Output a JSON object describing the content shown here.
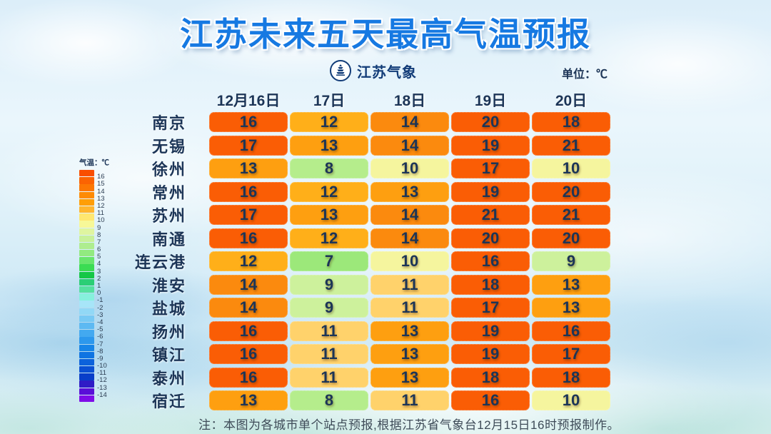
{
  "title": "江苏未来五天最高气温预报",
  "logo": {
    "icon": "pagoda-badge-icon",
    "text": "江苏气象"
  },
  "unit_label": "单位：℃",
  "note": "注：本图为各城市单个站点预报,根据江苏省气象台12月15日16时预报制作。",
  "chart_data": {
    "type": "heatmap",
    "title": "江苏未来五天最高气温预报",
    "unit": "℃",
    "columns": [
      "12月16日",
      "17日",
      "18日",
      "19日",
      "20日"
    ],
    "rows": [
      {
        "city": "南京",
        "values": [
          16,
          12,
          14,
          20,
          18
        ]
      },
      {
        "city": "无锡",
        "values": [
          17,
          13,
          14,
          19,
          21
        ]
      },
      {
        "city": "徐州",
        "values": [
          13,
          8,
          10,
          17,
          10
        ]
      },
      {
        "city": "常州",
        "values": [
          16,
          12,
          13,
          19,
          20
        ]
      },
      {
        "city": "苏州",
        "values": [
          17,
          13,
          14,
          21,
          21
        ]
      },
      {
        "city": "南通",
        "values": [
          16,
          12,
          14,
          20,
          20
        ]
      },
      {
        "city": "连云港",
        "values": [
          12,
          7,
          10,
          16,
          9
        ]
      },
      {
        "city": "淮安",
        "values": [
          14,
          9,
          11,
          18,
          13
        ]
      },
      {
        "city": "盐城",
        "values": [
          14,
          9,
          11,
          17,
          13
        ]
      },
      {
        "city": "扬州",
        "values": [
          16,
          11,
          13,
          19,
          16
        ]
      },
      {
        "city": "镇江",
        "values": [
          16,
          11,
          13,
          19,
          17
        ]
      },
      {
        "city": "泰州",
        "values": [
          16,
          11,
          13,
          18,
          18
        ]
      },
      {
        "city": "宿迁",
        "values": [
          13,
          8,
          11,
          16,
          10
        ]
      }
    ],
    "color_scale": {
      "7": "#9CE87A",
      "8": "#B5ED8C",
      "9": "#CDF19C",
      "10": "#F5F59E",
      "11": "#FFD26B",
      "12": "#FFAF19",
      "13": "#FE9F10",
      "14": "#FB8A0E",
      "15": "#FB7607",
      "16": "#FA5D05"
    }
  },
  "legend": {
    "label": "气温：℃",
    "entries": [
      {
        "label": "",
        "color": "#F94E00"
      },
      {
        "label": "16",
        "color": "#FB6302"
      },
      {
        "label": "15",
        "color": "#FC7703"
      },
      {
        "label": "14",
        "color": "#FE8B05"
      },
      {
        "label": "13",
        "color": "#FF9E07"
      },
      {
        "label": "12",
        "color": "#FFB52F"
      },
      {
        "label": "11",
        "color": "#FFE770"
      },
      {
        "label": "10",
        "color": "#F7F898"
      },
      {
        "label": "9",
        "color": "#DFF5A0"
      },
      {
        "label": "8",
        "color": "#C8F19A"
      },
      {
        "label": "7",
        "color": "#AEED8F"
      },
      {
        "label": "6",
        "color": "#92EA80"
      },
      {
        "label": "5",
        "color": "#68E56C"
      },
      {
        "label": "4",
        "color": "#3BDC53"
      },
      {
        "label": "3",
        "color": "#15C746"
      },
      {
        "label": "2",
        "color": "#2BCE75"
      },
      {
        "label": "1",
        "color": "#55E09F"
      },
      {
        "label": "0",
        "color": "#86F0DC"
      },
      {
        "label": "-1",
        "color": "#A7E5F8"
      },
      {
        "label": "-2",
        "color": "#92D8F6"
      },
      {
        "label": "-3",
        "color": "#78C9F4"
      },
      {
        "label": "-4",
        "color": "#5DB9F2"
      },
      {
        "label": "-5",
        "color": "#43A9F0"
      },
      {
        "label": "-6",
        "color": "#2C98ED"
      },
      {
        "label": "-7",
        "color": "#1785E8"
      },
      {
        "label": "-8",
        "color": "#0F74E2"
      },
      {
        "label": "-9",
        "color": "#0C62DB"
      },
      {
        "label": "-10",
        "color": "#0A50D3"
      },
      {
        "label": "-11",
        "color": "#083EC9"
      },
      {
        "label": "-12",
        "color": "#2F1BC6"
      },
      {
        "label": "-13",
        "color": "#5A0ED8"
      },
      {
        "label": "-14",
        "color": "#7E0CE8"
      }
    ]
  }
}
